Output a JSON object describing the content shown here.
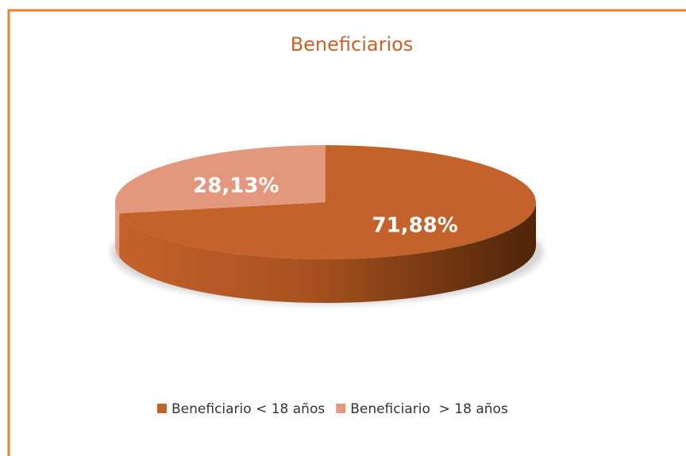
{
  "chart_data": {
    "type": "pie",
    "title": "Beneficiarios",
    "categories": [
      "Beneficiario < 18 años",
      "Beneficiario  > 18 años"
    ],
    "values": [
      71.88,
      28.13
    ],
    "value_labels": [
      "71,88%",
      "28,13%"
    ],
    "colors": [
      "#c4622b",
      "#e3987d"
    ],
    "legend": "bottom"
  }
}
